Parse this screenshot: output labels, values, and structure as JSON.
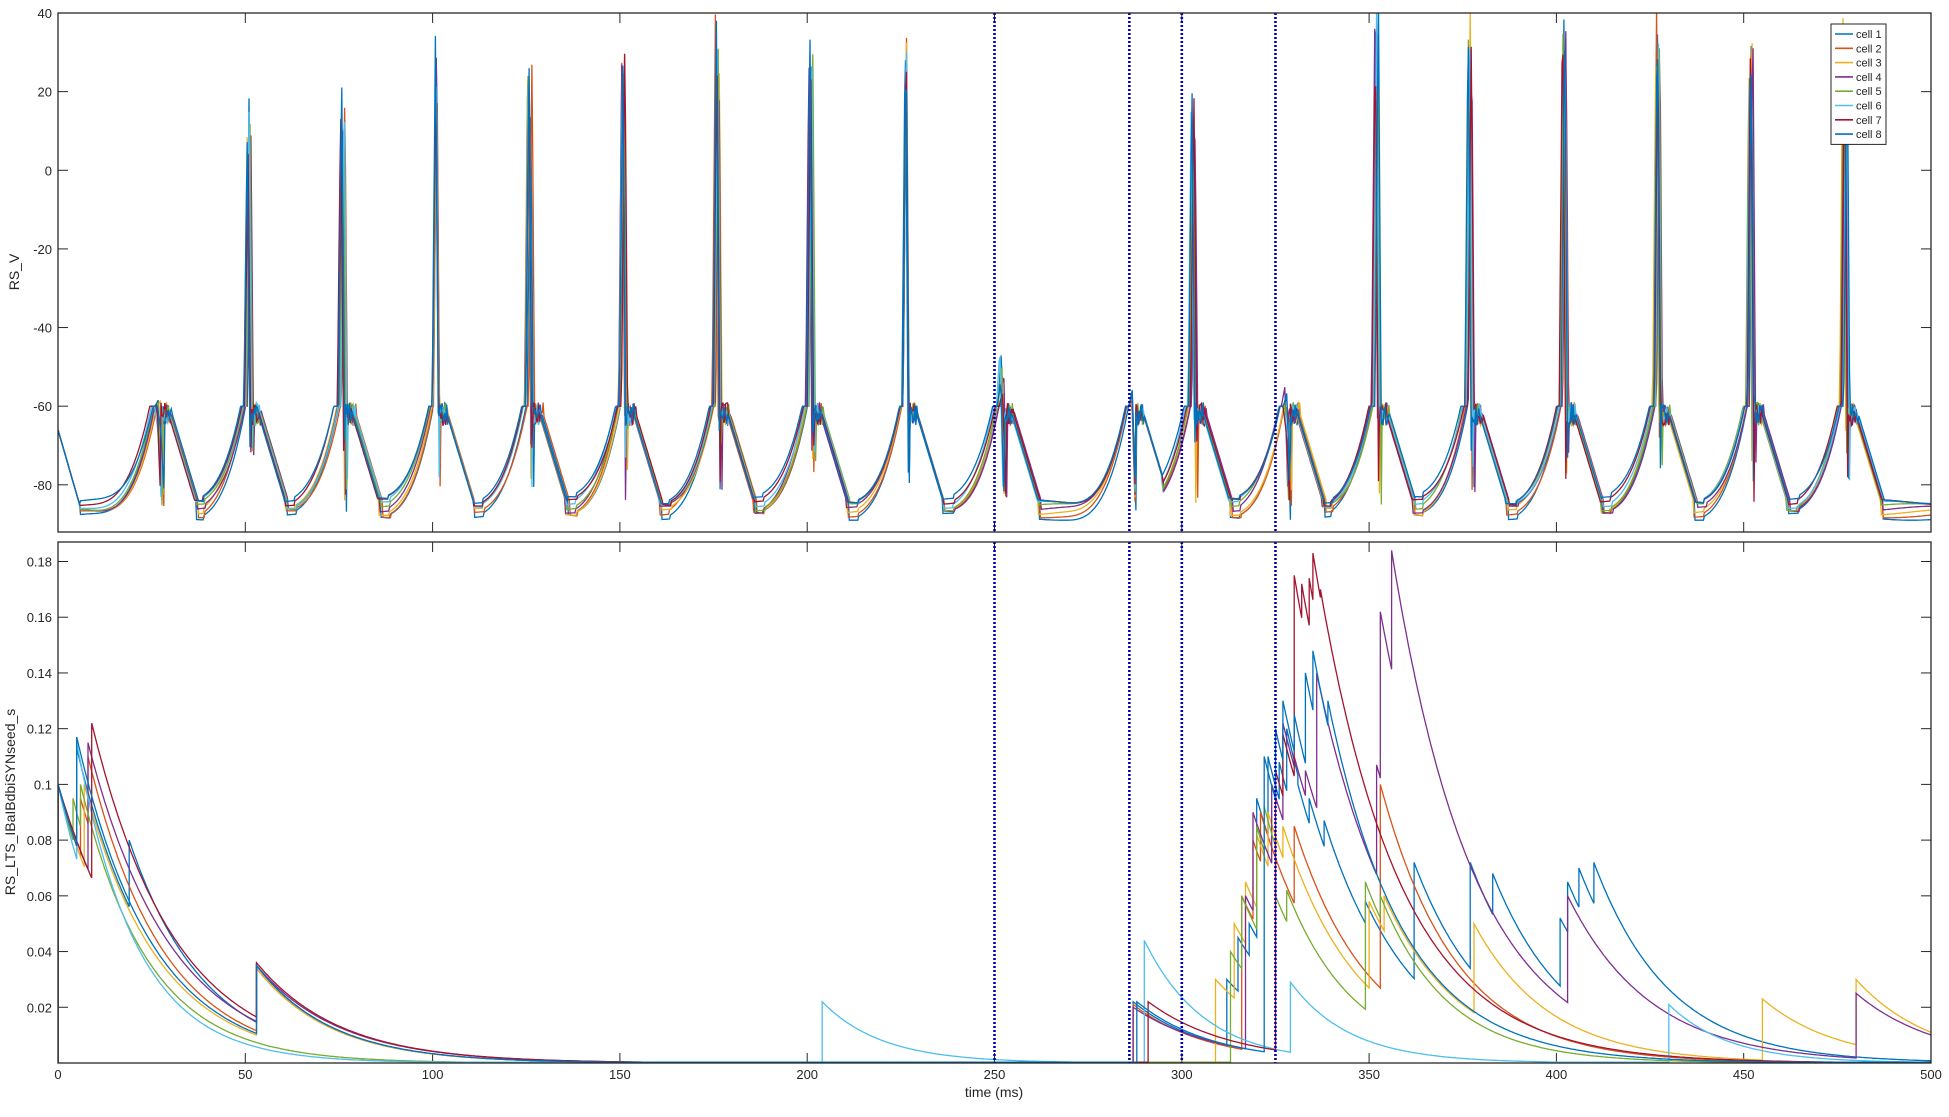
{
  "figure": {
    "xlabel": "time (ms)",
    "x_ticks": [
      0,
      50,
      100,
      150,
      200,
      250,
      300,
      350,
      400,
      450,
      500
    ],
    "xlim": [
      0,
      500
    ],
    "vlines": [
      250,
      286,
      300,
      325
    ],
    "vline_color": "#0000b4"
  },
  "chart_data": [
    {
      "type": "line",
      "ylabel": "RS_V",
      "ylim": [
        -92,
        40
      ],
      "y_ticks": [
        -80,
        -60,
        -40,
        -20,
        0,
        20,
        40
      ],
      "legend_placement": "top-right",
      "series": [
        {
          "name": "cell 1",
          "color": "#0072bd"
        },
        {
          "name": "cell 2",
          "color": "#d95319"
        },
        {
          "name": "cell 3",
          "color": "#edb120"
        },
        {
          "name": "cell 4",
          "color": "#7e2f8e"
        },
        {
          "name": "cell 5",
          "color": "#77ac30"
        },
        {
          "name": "cell 6",
          "color": "#4dbeee"
        },
        {
          "name": "cell 7",
          "color": "#a2142f"
        },
        {
          "name": "cell 8",
          "color": "#0072bd"
        }
      ],
      "population_spike_times_ms": [
        27,
        51,
        76,
        101,
        126,
        151,
        176,
        201,
        226,
        252,
        287,
        303,
        328,
        352,
        377,
        402,
        427,
        452,
        477
      ],
      "resting_potential_mV": -86,
      "example_peaks_mV": [
        -64,
        12,
        18,
        30,
        30,
        34,
        37,
        33,
        35,
        -50,
        -55,
        18,
        -60,
        38,
        38,
        38,
        38,
        38,
        38
      ]
    },
    {
      "type": "line",
      "ylabel": "RS_LTS_IBaIBdbiSYNseed_s",
      "ylim": [
        0,
        0.187
      ],
      "y_ticks": [
        0.02,
        0.04,
        0.06,
        0.08,
        0.1,
        0.12,
        0.14,
        0.16,
        0.18
      ],
      "y_tick_labels": [
        "0.02",
        "0.04",
        "0.06",
        "0.08",
        "0.1",
        "0.12",
        "0.14",
        "0.16",
        "0.18"
      ],
      "series": [
        {
          "name": "cell 1",
          "color": "#0072bd",
          "tau": 20,
          "events": [
            [
              0,
              0.1
            ],
            [
              5,
              0.113
            ],
            [
              19,
              0.08
            ],
            [
              53,
              0.035
            ],
            [
              287,
              0.022
            ],
            [
              312,
              0.03
            ],
            [
              315,
              0.045
            ],
            [
              318,
              0.05
            ],
            [
              320,
              0.095
            ],
            [
              323,
              0.11
            ],
            [
              326,
              0.108
            ],
            [
              328,
              0.12
            ],
            [
              331,
              0.1
            ],
            [
              334,
              0.095
            ],
            [
              338,
              0.087
            ],
            [
              349,
              0.058
            ],
            [
              362,
              0.072
            ],
            [
              377,
              0.072
            ],
            [
              383,
              0.068
            ],
            [
              401,
              0.052
            ],
            [
              403,
              0.065
            ],
            [
              406,
              0.07
            ],
            [
              410,
              0.072
            ]
          ]
        },
        {
          "name": "cell 2",
          "color": "#d95319",
          "tau": 20,
          "events": [
            [
              0,
              0.1
            ],
            [
              6,
              0.095
            ],
            [
              8,
              0.11
            ],
            [
              53,
              0.034
            ],
            [
              287,
              0.021
            ],
            [
              316,
              0.06
            ],
            [
              319,
              0.08
            ],
            [
              321,
              0.09
            ],
            [
              330,
              0.085
            ],
            [
              353,
              0.1
            ]
          ]
        },
        {
          "name": "cell 3",
          "color": "#edb120",
          "tau": 20,
          "events": [
            [
              0,
              0.1
            ],
            [
              7,
              0.1
            ],
            [
              53,
              0.034
            ],
            [
              309,
              0.03
            ],
            [
              314,
              0.05
            ],
            [
              317,
              0.065
            ],
            [
              320,
              0.082
            ],
            [
              323,
              0.09
            ],
            [
              327,
              0.085
            ],
            [
              350,
              0.058
            ],
            [
              354,
              0.06
            ],
            [
              378,
              0.05
            ],
            [
              455,
              0.023
            ],
            [
              480,
              0.03
            ]
          ]
        },
        {
          "name": "cell 4",
          "color": "#7e2f8e",
          "tau": 22,
          "events": [
            [
              0,
              0.1
            ],
            [
              8,
              0.115
            ],
            [
              53,
              0.035
            ],
            [
              287,
              0.02
            ],
            [
              317,
              0.06
            ],
            [
              319,
              0.09
            ],
            [
              324,
              0.1
            ],
            [
              327,
              0.122
            ],
            [
              330,
              0.11
            ],
            [
              333,
              0.105
            ],
            [
              336,
              0.14
            ],
            [
              352,
              0.107
            ],
            [
              353,
              0.162
            ],
            [
              356,
              0.184
            ],
            [
              403,
              0.06
            ],
            [
              480,
              0.025
            ]
          ]
        },
        {
          "name": "cell 5",
          "color": "#77ac30",
          "tau": 18,
          "events": [
            [
              0,
              0.1
            ],
            [
              4,
              0.095
            ],
            [
              6,
              0.1
            ],
            [
              313,
              0.04
            ],
            [
              316,
              0.06
            ],
            [
              320,
              0.085
            ],
            [
              322,
              0.092
            ],
            [
              325,
              0.06
            ],
            [
              328,
              0.062
            ],
            [
              349,
              0.065
            ],
            [
              353,
              0.06
            ]
          ]
        },
        {
          "name": "cell 6",
          "color": "#4dbeee",
          "tau": 16,
          "events": [
            [
              0,
              0.1
            ],
            [
              5,
              0.115
            ],
            [
              204,
              0.022
            ],
            [
              290,
              0.044
            ],
            [
              329,
              0.029
            ],
            [
              430,
              0.021
            ]
          ]
        },
        {
          "name": "cell 7",
          "color": "#a2142f",
          "tau": 22,
          "events": [
            [
              0,
              0.1
            ],
            [
              9,
              0.122
            ],
            [
              53,
              0.036
            ],
            [
              291,
              0.022
            ],
            [
              325,
              0.105
            ],
            [
              327,
              0.118
            ],
            [
              330,
              0.175
            ],
            [
              332,
              0.172
            ],
            [
              334,
              0.174
            ],
            [
              335,
              0.183
            ],
            [
              337,
              0.17
            ]
          ]
        },
        {
          "name": "cell 8",
          "color": "#0072bd",
          "tau": 20,
          "events": [
            [
              0,
              0.1
            ],
            [
              5,
              0.117
            ],
            [
              53,
              0.035
            ],
            [
              288,
              0.022
            ],
            [
              322,
              0.11
            ],
            [
              325,
              0.12
            ],
            [
              327,
              0.13
            ],
            [
              330,
              0.125
            ],
            [
              333,
              0.14
            ],
            [
              335,
              0.148
            ],
            [
              339,
              0.13
            ]
          ]
        }
      ]
    }
  ]
}
